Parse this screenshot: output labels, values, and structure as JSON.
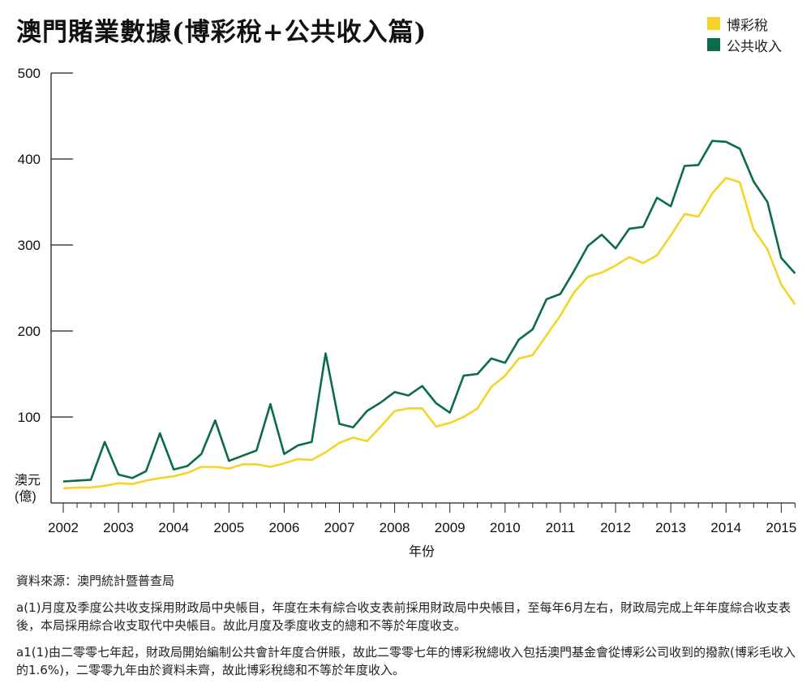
{
  "title": "澳門賭業數據(博彩稅+公共收入篇)",
  "source": "資料來源：澳門統計暨普查局",
  "notes": [
    "a(1)月度及季度公共收支採用財政局中央帳目，年度在未有綜合收支表前採用財政局中央帳目，至每年6月左右，財政局完成上年年度綜合收支表後，本局採用綜合收支取代中央帳目。故此月度及季度收支的總和不等於年度收支。",
    "a1(1)由二零零七年起，財政局開始編制公共會計年度合併賬，故此二零零七年的博彩稅總收入包括澳門基金會從博彩公司收到的撥款(博彩毛收入的1.6%)，二零零九年由於資料未齊，故此博彩稅總和不等於年度收入。"
  ],
  "colors": {
    "gaming_tax": "#f5d327",
    "public_revenue": "#0b6b4a",
    "axis": "#222222"
  },
  "chart_data": {
    "type": "line",
    "title": "澳門賭業數據(博彩稅+公共收入篇)",
    "xlabel": "年份",
    "ylabel": "澳元\n(億)",
    "ylabel_lines": [
      "澳元",
      "(億)"
    ],
    "ylim": [
      0,
      500
    ],
    "xlim": [
      2002,
      2015.25
    ],
    "yticks": [
      100,
      200,
      300,
      400,
      500
    ],
    "xticks": [
      2002,
      2003,
      2004,
      2005,
      2006,
      2007,
      2008,
      2009,
      2010,
      2011,
      2012,
      2013,
      2014,
      2015
    ],
    "legend_position": "top-right",
    "grid": false,
    "x": [
      2002.0,
      2002.25,
      2002.5,
      2002.75,
      2003.0,
      2003.25,
      2003.5,
      2003.75,
      2004.0,
      2004.25,
      2004.5,
      2004.75,
      2005.0,
      2005.25,
      2005.5,
      2005.75,
      2006.0,
      2006.25,
      2006.5,
      2006.75,
      2007.0,
      2007.25,
      2007.5,
      2007.75,
      2008.0,
      2008.25,
      2008.5,
      2008.75,
      2009.0,
      2009.25,
      2009.5,
      2009.75,
      2010.0,
      2010.25,
      2010.5,
      2010.75,
      2011.0,
      2011.25,
      2011.5,
      2011.75,
      2012.0,
      2012.25,
      2012.5,
      2012.75,
      2013.0,
      2013.25,
      2013.5,
      2013.75,
      2014.0,
      2014.25,
      2014.5,
      2014.75,
      2015.0,
      2015.25
    ],
    "series": [
      {
        "name": "博彩稅",
        "color": "#f5d327",
        "values": [
          17,
          18,
          18,
          20,
          23,
          22,
          26,
          29,
          31,
          35,
          42,
          42,
          40,
          45,
          45,
          42,
          46,
          51,
          50,
          59,
          70,
          76,
          72,
          89,
          107,
          110,
          110,
          89,
          93,
          100,
          110,
          135,
          148,
          168,
          172,
          195,
          218,
          245,
          263,
          268,
          276,
          286,
          279,
          288,
          311,
          336,
          333,
          360,
          378,
          373,
          318,
          295,
          254,
          231
        ]
      },
      {
        "name": "公共收入",
        "color": "#0b6b4a",
        "values": [
          25,
          26,
          27,
          71,
          33,
          29,
          37,
          81,
          39,
          43,
          57,
          96,
          49,
          55,
          61,
          115,
          57,
          67,
          71,
          174,
          92,
          88,
          107,
          117,
          129,
          125,
          136,
          116,
          105,
          148,
          150,
          168,
          163,
          190,
          202,
          237,
          243,
          270,
          299,
          312,
          296,
          319,
          321,
          355,
          345,
          392,
          393,
          421,
          420,
          412,
          374,
          350,
          285,
          267
        ]
      }
    ]
  }
}
